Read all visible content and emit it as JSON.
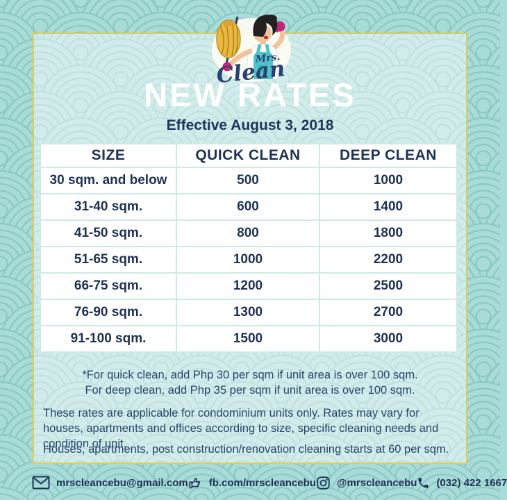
{
  "poster": {
    "brand": {
      "name_prefix": "Mrs.",
      "name": "Clean"
    },
    "title": "NEW RATES",
    "subtitle": "Effective August 3, 2018",
    "table": {
      "headers": [
        "SIZE",
        "QUICK CLEAN",
        "DEEP CLEAN"
      ],
      "rows": [
        [
          "30 sqm. and below",
          "500",
          "1000"
        ],
        [
          "31-40 sqm.",
          "600",
          "1400"
        ],
        [
          "41-50 sqm.",
          "800",
          "1800"
        ],
        [
          "51-65 sqm.",
          "1000",
          "2200"
        ],
        [
          "66-75 sqm.",
          "1200",
          "2500"
        ],
        [
          "76-90 sqm.",
          "1300",
          "2700"
        ],
        [
          "91-100 sqm.",
          "1500",
          "3000"
        ]
      ]
    },
    "notes": {
      "quick_clean_note": "*For quick clean, add Php 30 per sqm if unit area is over 100 sqm.",
      "deep_clean_note": "For deep clean, add Php 35 per sqm if unit area is over 100 sqm.",
      "paragraph1": "These rates are applicable for condominium units only. Rates may vary for houses, apartments and offices according to size, specific cleaning needs and condition of unit.",
      "paragraph2": "Houses, apartments, post construction/renovation cleaning starts at 60 per sqm."
    },
    "footer": {
      "items": [
        {
          "icon": "email-icon",
          "text": "mrscleancebu@gmail.com"
        },
        {
          "icon": "facebook-like-icon",
          "text": "fb.com/mrscleancebu"
        },
        {
          "icon": "instagram-icon",
          "text": "@mrscleancebu"
        },
        {
          "icon": "phone-icon",
          "text": "(032) 422 1667"
        }
      ]
    },
    "colors": {
      "background_teal": "#a9dcd9",
      "wave_arc_teal": "#8bc9c5",
      "gold_border": "#e6cb52",
      "navy_text": "#1e3154",
      "table_border": "#cdeae6",
      "logo_teal": "#4fc3c7",
      "glove_magenta": "#c0267c",
      "mop_yellow": "#e9b83f"
    }
  }
}
